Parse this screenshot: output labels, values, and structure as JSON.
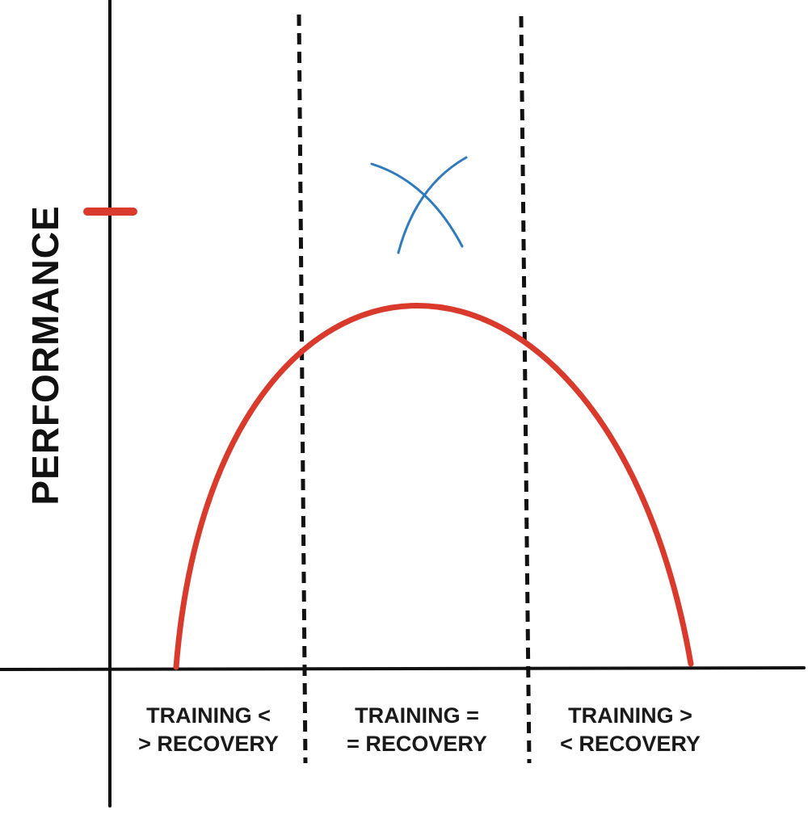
{
  "y_axis_label": "PERFORMANCE",
  "zones": [
    {
      "line1": "TRAINING <",
      "line2": "> RECOVERY"
    },
    {
      "line1": "TRAINING =",
      "line2": "= RECOVERY"
    },
    {
      "line1": "TRAINING >",
      "line2": "< RECOVERY"
    }
  ],
  "colors": {
    "curve": "#d93a2b",
    "peak_marker": "#2f7bbf",
    "peak_tick": "#d93a2b",
    "axes": "#111111"
  },
  "icons": {
    "peak_marker": "cross-mark",
    "peak_tick": "dash-mark"
  }
}
